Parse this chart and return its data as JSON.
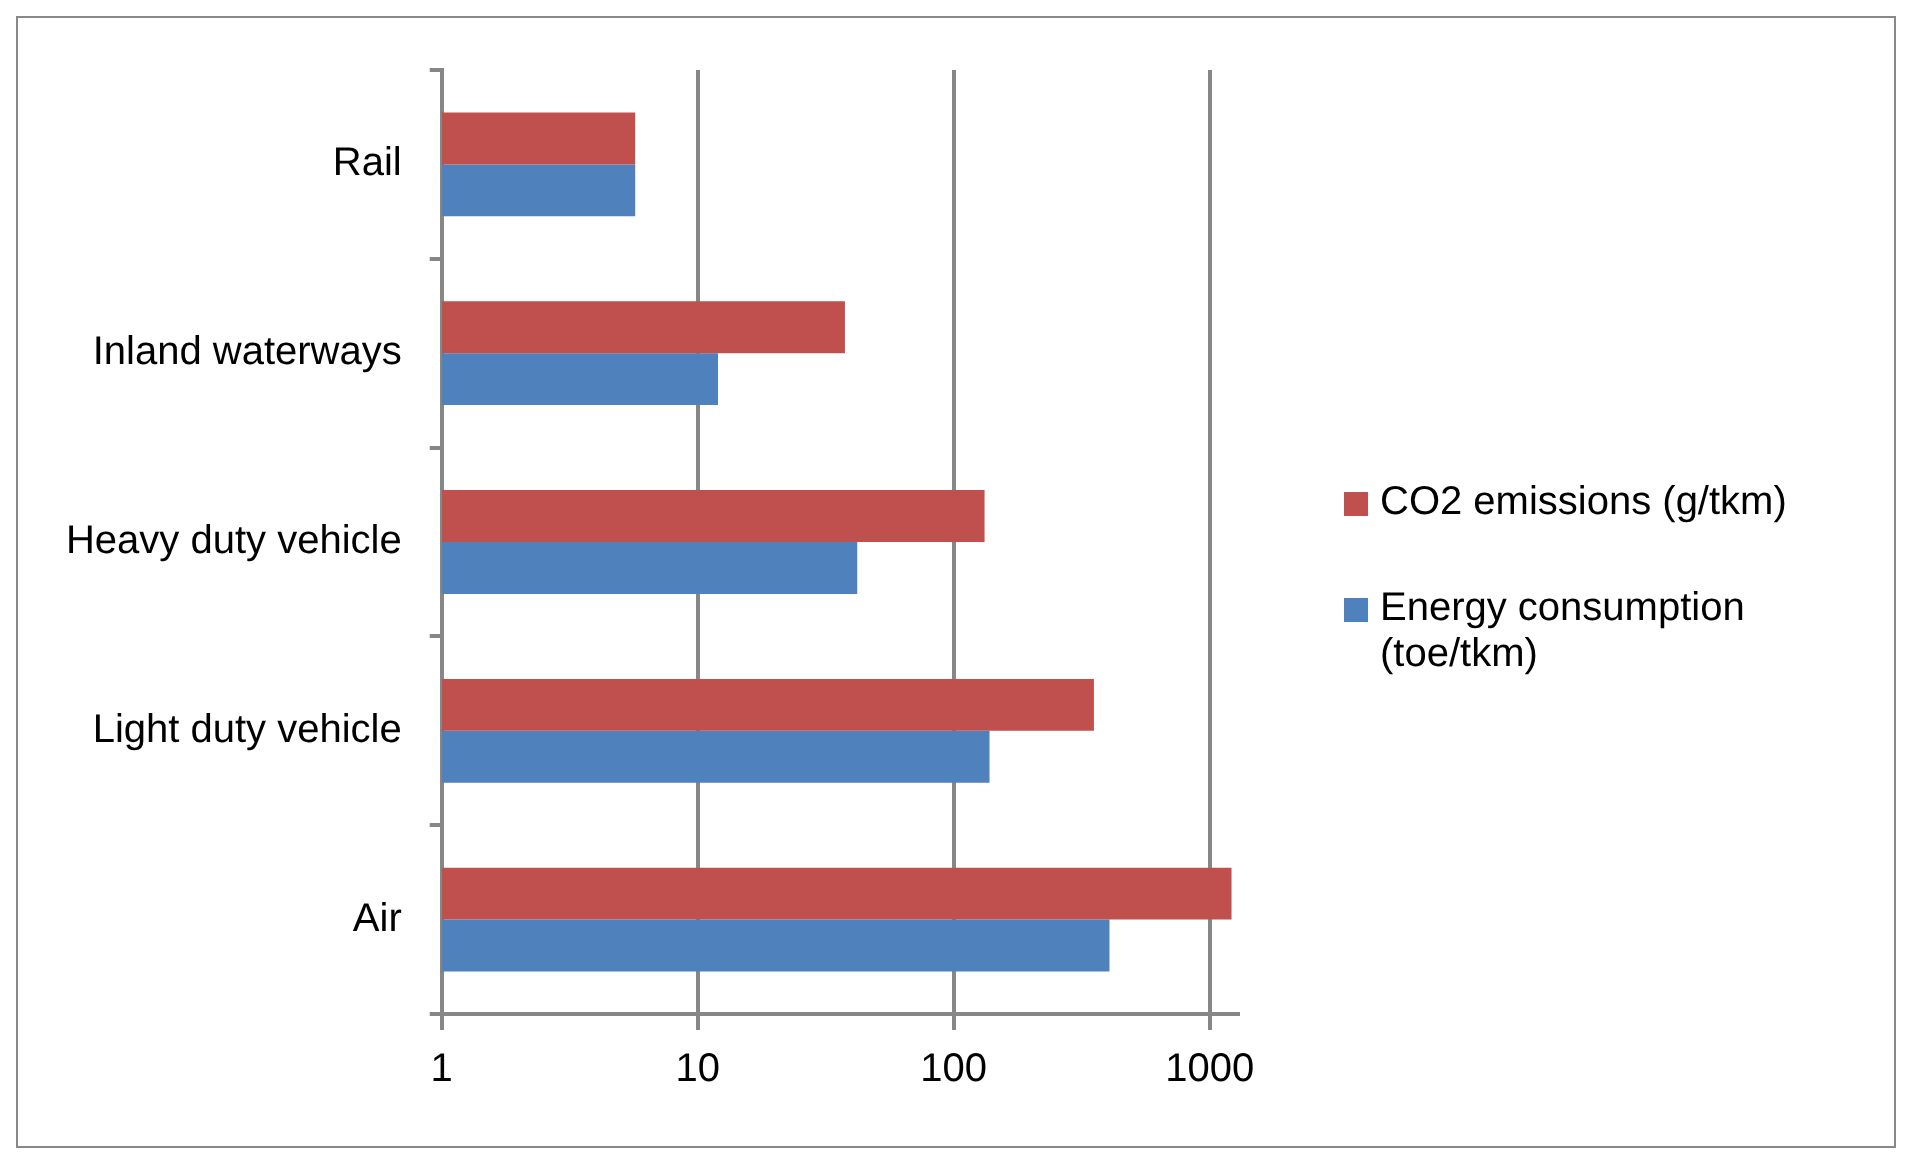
{
  "chart_data": {
    "type": "bar",
    "orientation": "horizontal",
    "log": "x",
    "categories": [
      "Rail",
      "Inland waterways",
      "Heavy duty vehicle",
      "Light duty vehicle",
      "Air"
    ],
    "series": [
      {
        "name": "CO2 emissions (g/tkm)",
        "color": "#c0504d",
        "values": [
          5.7,
          37.6,
          132,
          353,
          1217
        ]
      },
      {
        "name": "Energy consumption (toe/tkm)",
        "color": "#4f81bd",
        "values": [
          5.7,
          12,
          42,
          138,
          406
        ]
      }
    ],
    "xlim": [
      1,
      1290
    ],
    "xticks": [
      1,
      10,
      100,
      1000
    ],
    "grid": "x",
    "legend": "right"
  }
}
